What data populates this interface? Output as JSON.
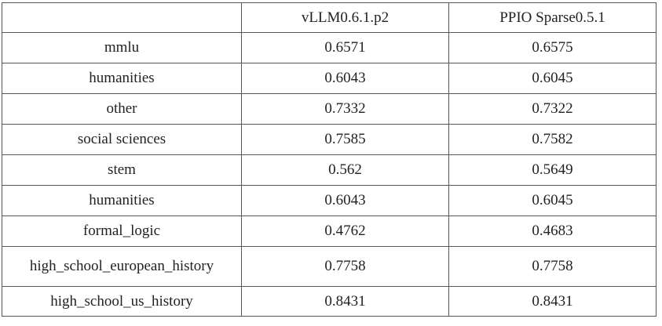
{
  "table": {
    "headers": [
      "",
      "vLLM0.6.1.p2",
      "PPIO Sparse0.5.1"
    ],
    "rows": [
      [
        "mmlu",
        "0.6571",
        "0.6575"
      ],
      [
        "humanities",
        "0.6043",
        "0.6045"
      ],
      [
        "other",
        "0.7332",
        "0.7322"
      ],
      [
        "social sciences",
        "0.7585",
        "0.7582"
      ],
      [
        "stem",
        "0.562",
        "0.5649"
      ],
      [
        "humanities",
        "0.6043",
        "0.6045"
      ],
      [
        "formal_logic",
        "0.4762",
        "0.4683"
      ],
      [
        "high_school_european_history",
        "0.7758",
        "0.7758"
      ],
      [
        "high_school_us_history",
        "0.8431",
        "0.8431"
      ]
    ]
  },
  "colors": {
    "border": "#555555",
    "text": "#222222",
    "background": "#ffffff"
  }
}
